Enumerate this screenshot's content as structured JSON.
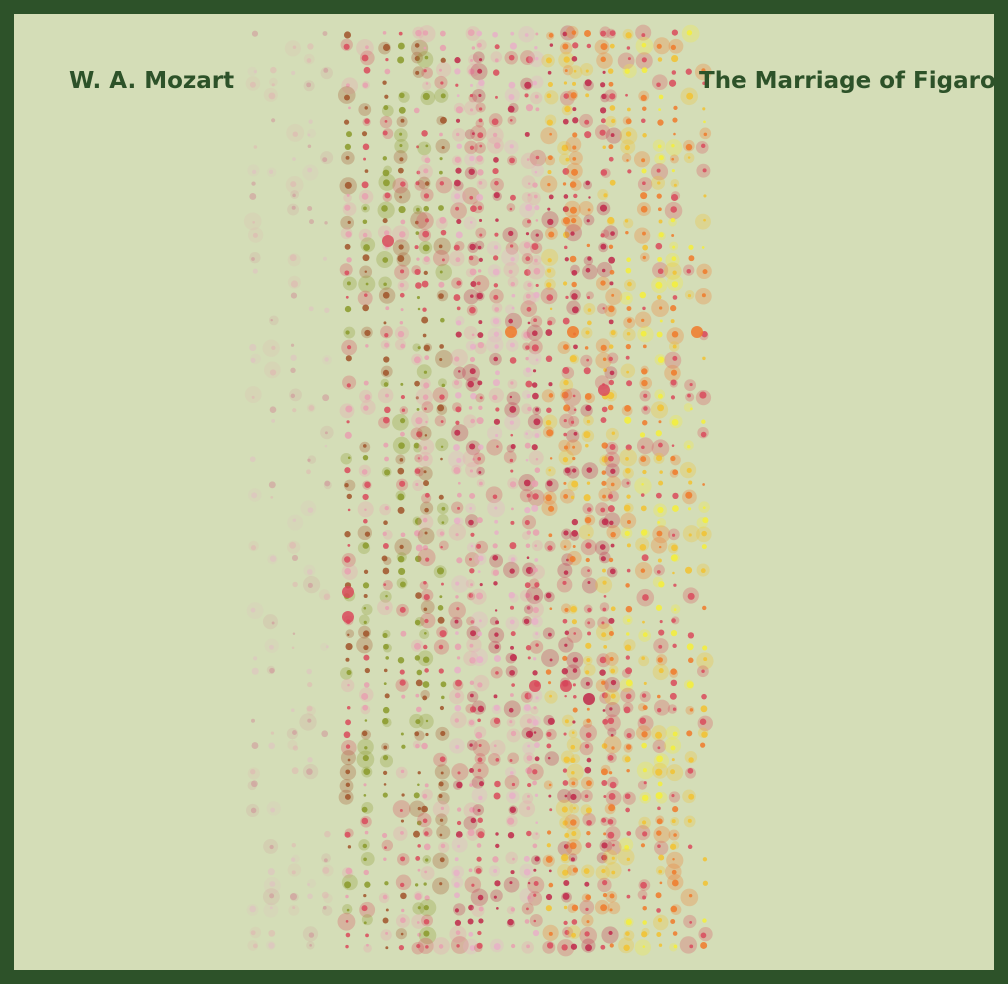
{
  "composer": "W. A. Mozart",
  "work": "The Marriage of Figaro",
  "colors": {
    "frame": "#2d5229",
    "background": "#d4ddb7",
    "text": "#2d5229",
    "palette": [
      "#e8a0b0",
      "#d94a5c",
      "#c0284a",
      "#f07a2a",
      "#f2c230",
      "#f5ee3a",
      "#8a9a2a",
      "#a0532a",
      "#e8b0c8",
      "#cf6a8a"
    ]
  }
}
